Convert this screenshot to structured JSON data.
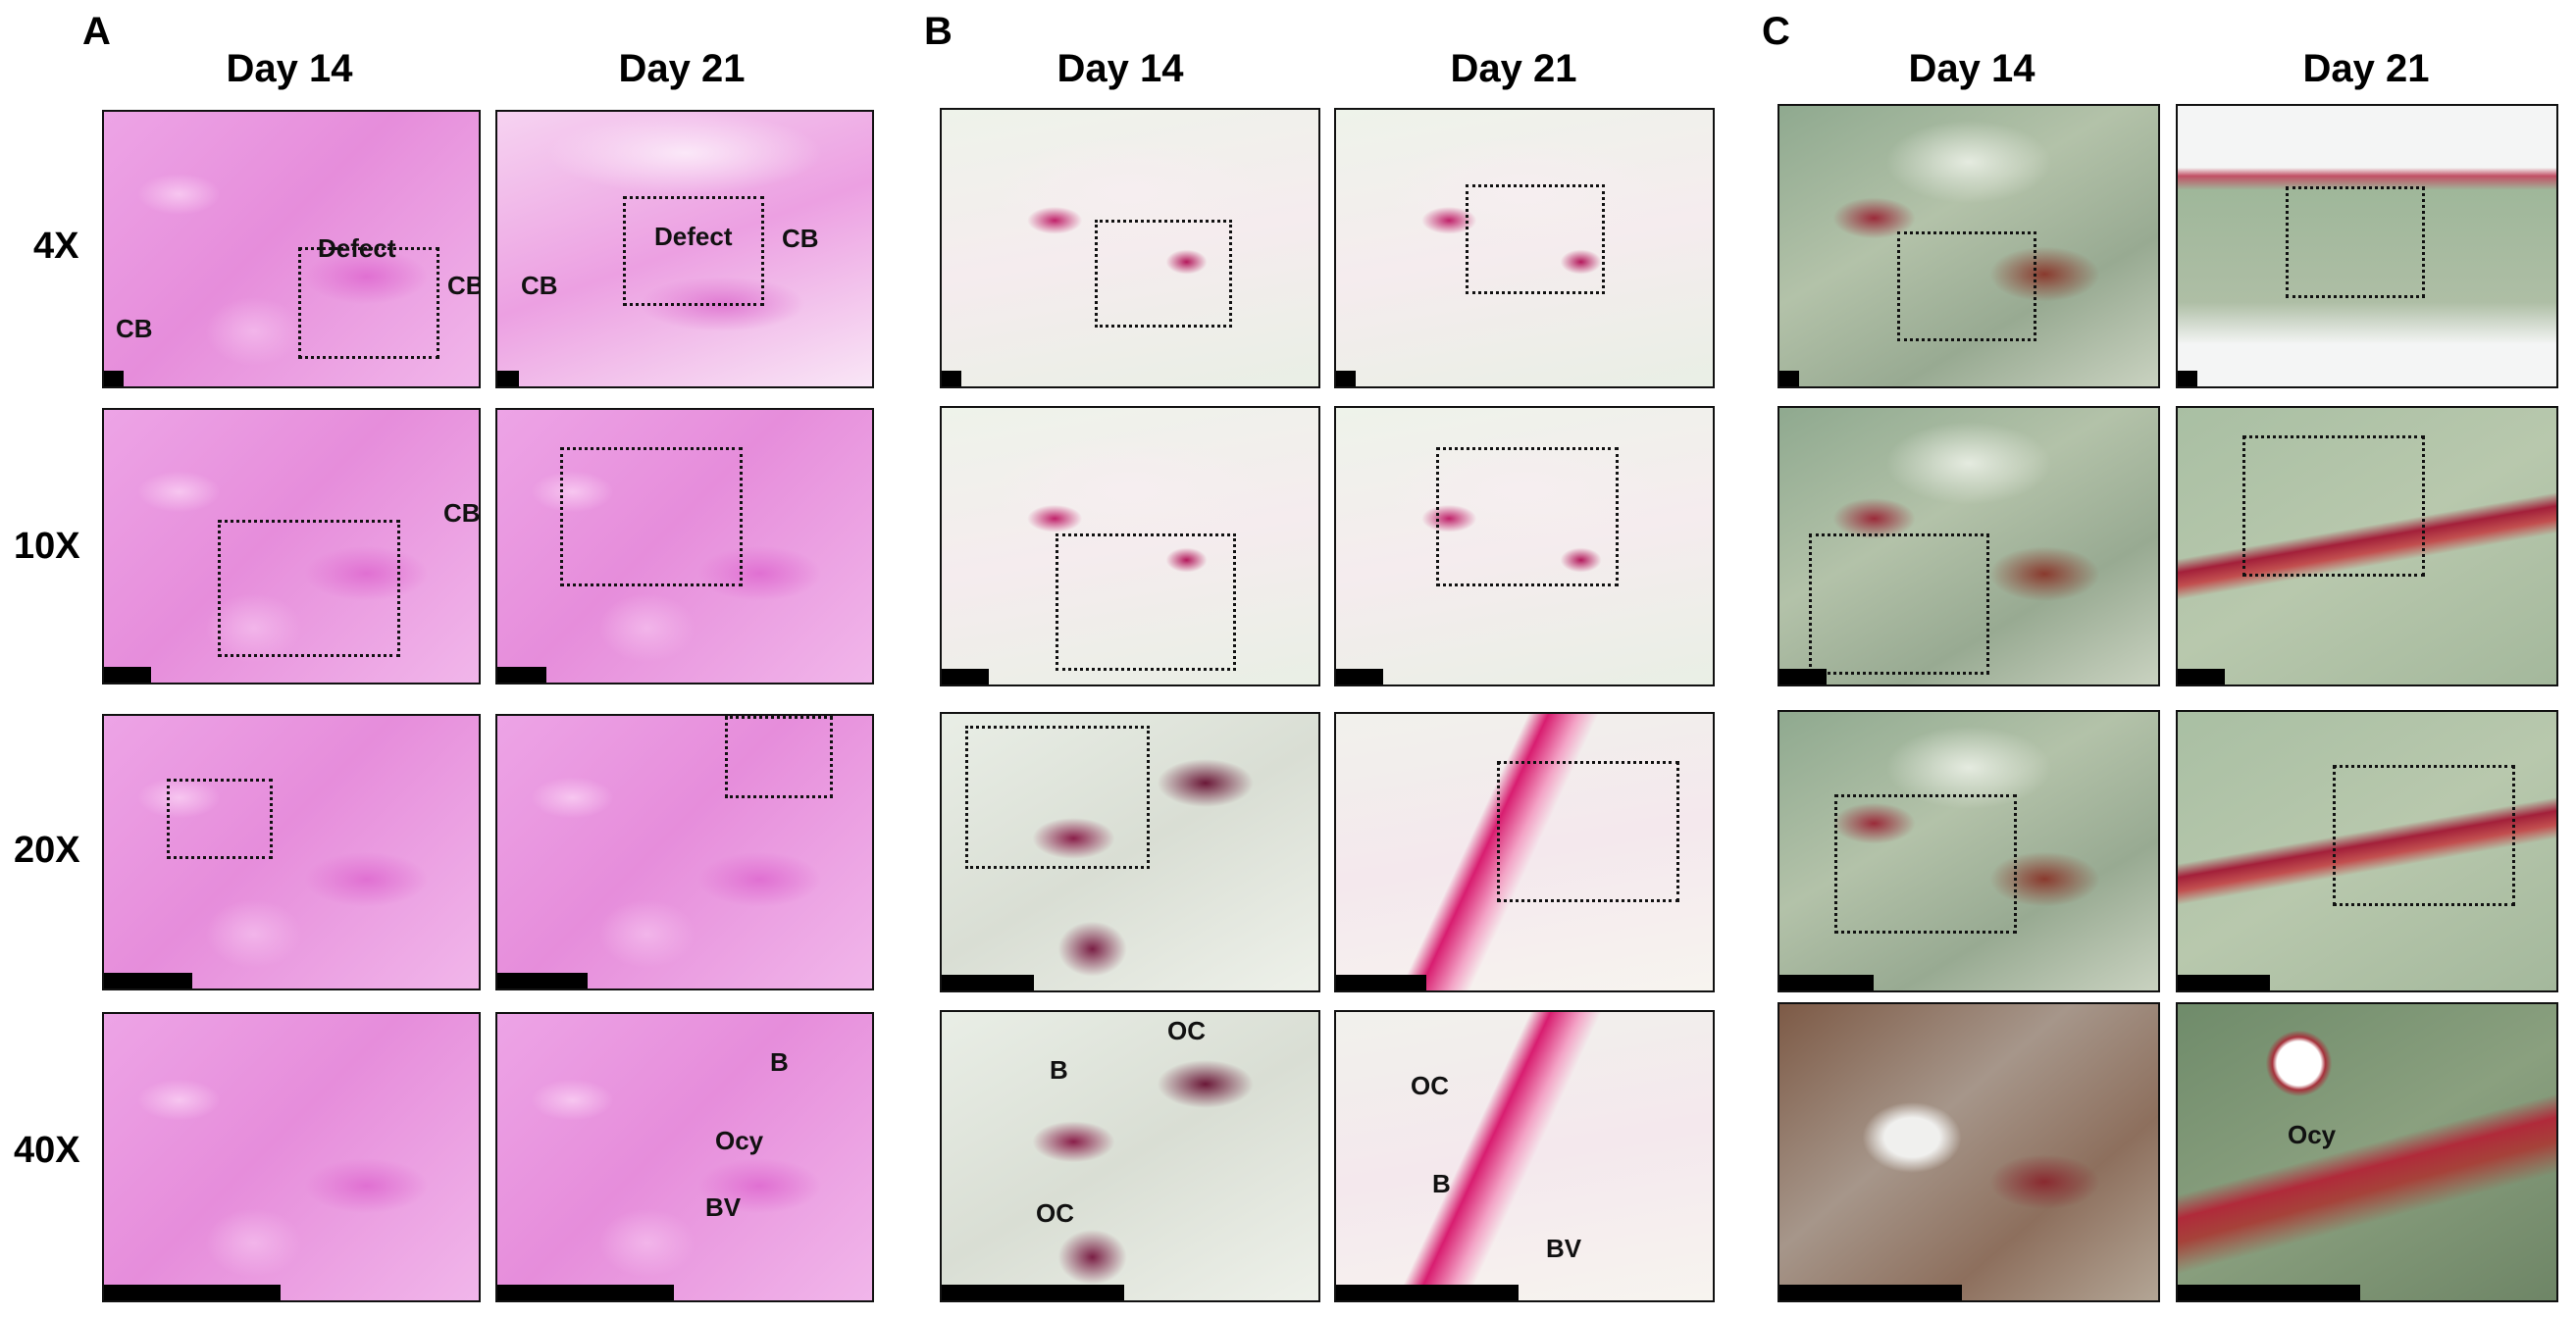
{
  "panels": [
    {
      "letter": "A",
      "day14": "Day 14",
      "day21": "Day 21"
    },
    {
      "letter": "B",
      "day14": "Day 14",
      "day21": "Day 21"
    },
    {
      "letter": "C",
      "day14": "Day 14",
      "day21": "Day 21"
    }
  ],
  "magnifications": [
    "4X",
    "10X",
    "20X",
    "40X"
  ],
  "labels": {
    "cb": "CB",
    "defect": "Defect",
    "b": "B",
    "ocy": "Ocy",
    "bv": "BV",
    "oc": "OC"
  },
  "stain_colors": {
    "he": "#e68ddb",
    "trap": "#c0226a",
    "masson_green": "#9fb79a",
    "masson_red": "#a3203a"
  }
}
